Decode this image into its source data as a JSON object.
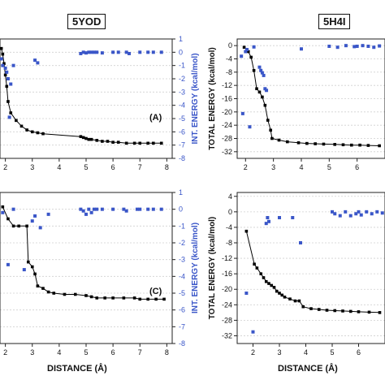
{
  "titles": {
    "left": "5YOD",
    "right": "5H4I"
  },
  "colors": {
    "line": "#000000",
    "scatter": "#3a56c8",
    "right_axis": "#3a56c8",
    "grid": "#d0d0d0"
  },
  "chart_data": [
    {
      "panel": "5YOD top",
      "type": "line",
      "annotation": "(A)",
      "xlim": [
        1.8,
        8.2
      ],
      "xticks": [
        "2",
        "3",
        "4",
        "5",
        "6",
        "7",
        "8"
      ],
      "ylim_right": [
        -8,
        1
      ],
      "ylabel_right": "INT. ENERGY (kcal/mol)",
      "yticks_right": [
        "-8",
        "-7",
        "-6",
        "-5",
        "-4",
        "-3",
        "-2",
        "-1",
        "0",
        "1"
      ],
      "series": [
        {
          "axis": "left",
          "style": "line",
          "x": [
            1.85,
            1.9,
            1.95,
            2.0,
            2.05,
            2.1,
            2.2,
            2.4,
            2.6,
            2.8,
            3.0,
            3.2,
            3.4,
            4.8,
            4.9,
            5.0,
            5.1,
            5.2,
            5.4,
            5.6,
            5.8,
            6.0,
            6.2,
            6.5,
            6.8,
            7.0,
            7.3,
            7.5,
            7.8
          ],
          "y": [
            -0.2,
            -0.5,
            -1.0,
            -1.6,
            -2.2,
            -3.0,
            -3.6,
            -4.0,
            -4.3,
            -4.5,
            -4.6,
            -4.65,
            -4.7,
            -4.85,
            -4.9,
            -4.95,
            -5.0,
            -5.0,
            -5.05,
            -5.1,
            -5.1,
            -5.15,
            -5.15,
            -5.2,
            -5.2,
            -5.2,
            -5.2,
            -5.2,
            -5.2
          ]
        },
        {
          "axis": "right",
          "style": "scatter",
          "x": [
            1.85,
            1.9,
            2.0,
            2.05,
            2.1,
            2.2,
            2.3,
            2.15,
            3.1,
            3.2,
            4.8,
            4.9,
            5.0,
            5.1,
            5.2,
            5.3,
            5.4,
            5.6,
            6.0,
            6.2,
            6.5,
            6.6,
            7.0,
            7.3,
            7.5,
            7.8
          ],
          "y": [
            -0.5,
            -1.0,
            -1.2,
            -1.5,
            -2.0,
            -2.4,
            -1.0,
            -4.9,
            -0.6,
            -0.8,
            -0.1,
            0.0,
            -0.05,
            0.0,
            0.0,
            0.0,
            0.0,
            -0.05,
            0.0,
            0.0,
            0.0,
            -0.1,
            0.0,
            0.0,
            0.0,
            0.0
          ]
        }
      ]
    },
    {
      "panel": "5H4I top",
      "type": "line",
      "xlim": [
        1.7,
        7.0
      ],
      "xticks": [
        "2",
        "3",
        "4",
        "5",
        "6"
      ],
      "ylim": [
        -34,
        2
      ],
      "ylabel": "TOTAL ENERGY (kcal/mol)",
      "yticks": [
        "0",
        "-4",
        "-8",
        "-12",
        "-16",
        "-20",
        "-24",
        "-28",
        "-32"
      ],
      "series": [
        {
          "axis": "left",
          "style": "line",
          "x": [
            1.95,
            2.05,
            2.1,
            2.2,
            2.3,
            2.4,
            2.5,
            2.6,
            2.7,
            2.8,
            2.9,
            2.95,
            3.2,
            3.5,
            3.9,
            4.2,
            4.5,
            4.8,
            5.2,
            5.5,
            5.8,
            6.1,
            6.4,
            6.8
          ],
          "y": [
            -0.5,
            -1.2,
            -1.8,
            -3.5,
            -7.5,
            -13.0,
            -14.0,
            -15.5,
            -18.0,
            -22.5,
            -25.5,
            -28.0,
            -28.5,
            -29.0,
            -29.3,
            -29.5,
            -29.6,
            -29.7,
            -29.8,
            -29.9,
            -30.0,
            -30.0,
            -30.1,
            -30.2
          ]
        },
        {
          "axis": "left",
          "style": "scatter",
          "x": [
            1.85,
            1.9,
            2.0,
            2.05,
            2.15,
            2.3,
            2.5,
            2.55,
            2.6,
            2.65,
            2.7,
            2.75,
            4.0,
            5.0,
            5.3,
            5.6,
            5.9,
            6.0,
            6.2,
            6.4,
            6.6,
            6.8
          ],
          "y": [
            -3.2,
            -20.5,
            -1.8,
            -1.2,
            -24.5,
            -0.4,
            -6.5,
            -7.5,
            -8.2,
            -9.0,
            -13.0,
            -13.5,
            -1.0,
            -0.2,
            -0.5,
            0.0,
            -0.3,
            -0.2,
            0.0,
            -0.2,
            -0.5,
            -0.1
          ]
        }
      ]
    },
    {
      "panel": "5YOD bottom",
      "type": "line",
      "annotation": "(C)",
      "xlim": [
        1.8,
        8.2
      ],
      "xticks": [
        "2",
        "3",
        "4",
        "5",
        "6",
        "7",
        "8"
      ],
      "xlabel": "DISTANCE (Å)",
      "ylim_right": [
        -8,
        1
      ],
      "ylabel_right": "INT. ENERGY (kcal/mol)",
      "yticks_right": [
        "-8",
        "-7",
        "-6",
        "-5",
        "-4",
        "-3",
        "-2",
        "-1",
        "0",
        "1"
      ],
      "series": [
        {
          "axis": "left",
          "style": "line",
          "x": [
            1.9,
            2.1,
            2.3,
            2.5,
            2.8,
            2.85,
            3.0,
            3.1,
            3.2,
            3.4,
            3.6,
            3.8,
            4.2,
            4.6,
            5.0,
            5.2,
            5.4,
            5.7,
            6.0,
            6.4,
            6.8,
            7.0,
            7.3,
            7.6,
            7.9
          ],
          "y": [
            -0.3,
            -0.8,
            -1.1,
            -1.1,
            -1.1,
            -2.6,
            -2.8,
            -3.1,
            -3.6,
            -3.7,
            -3.85,
            -3.9,
            -3.95,
            -3.95,
            -4.0,
            -4.05,
            -4.1,
            -4.1,
            -4.1,
            -4.1,
            -4.1,
            -4.15,
            -4.15,
            -4.15,
            -4.15
          ]
        },
        {
          "axis": "right",
          "style": "scatter",
          "x": [
            1.9,
            2.1,
            2.3,
            2.7,
            3.0,
            3.1,
            3.3,
            3.6,
            4.8,
            4.9,
            5.0,
            5.1,
            5.2,
            5.3,
            5.4,
            5.6,
            6.0,
            6.4,
            6.5,
            6.9,
            7.0,
            7.3,
            7.5,
            7.8
          ],
          "y": [
            -0.2,
            -3.3,
            0.0,
            -3.6,
            -0.7,
            -0.4,
            -1.1,
            -0.3,
            0.0,
            -0.1,
            -0.3,
            0.0,
            -0.2,
            0.0,
            0.0,
            0.0,
            0.0,
            0.0,
            -0.1,
            0.0,
            0.0,
            0.0,
            0.0,
            0.0
          ]
        }
      ]
    },
    {
      "panel": "5H4I bottom",
      "type": "line",
      "xlim": [
        1.4,
        7.0
      ],
      "xticks": [
        "2",
        "3",
        "4",
        "5",
        "6"
      ],
      "xlabel": "DISTANCE (Å)",
      "ylim": [
        -34,
        5
      ],
      "ylabel": "TOTAL ENERGY (kcal/mol)",
      "yticks": [
        "4",
        "0",
        "-4",
        "-8",
        "-12",
        "-16",
        "-20",
        "-24",
        "-28",
        "-32"
      ],
      "series": [
        {
          "axis": "left",
          "style": "line",
          "x": [
            1.75,
            2.05,
            2.15,
            2.3,
            2.4,
            2.5,
            2.6,
            2.7,
            2.8,
            2.9,
            3.0,
            3.1,
            3.2,
            3.4,
            3.6,
            3.75,
            3.9,
            4.2,
            4.5,
            4.8,
            5.1,
            5.4,
            5.7,
            6.0,
            6.4,
            6.8
          ],
          "y": [
            -5.0,
            -13.5,
            -14.5,
            -16.0,
            -17.0,
            -18.0,
            -18.5,
            -19.0,
            -19.5,
            -20.5,
            -21.0,
            -21.5,
            -22.0,
            -22.5,
            -23.0,
            -23.0,
            -24.5,
            -25.0,
            -25.2,
            -25.4,
            -25.5,
            -25.6,
            -25.7,
            -25.8,
            -25.9,
            -26.0
          ]
        },
        {
          "axis": "left",
          "style": "scatter",
          "x": [
            1.75,
            2.0,
            2.5,
            2.55,
            2.6,
            3.0,
            3.5,
            3.8,
            5.0,
            5.1,
            5.3,
            5.5,
            5.7,
            5.9,
            6.0,
            6.1,
            6.3,
            6.5,
            6.7,
            6.9
          ],
          "y": [
            -21.0,
            -31.0,
            -3.0,
            -1.5,
            -2.5,
            -1.5,
            -1.5,
            -8.0,
            0.0,
            -0.5,
            -1.0,
            0.0,
            -1.0,
            -0.5,
            0.0,
            -0.8,
            0.0,
            -0.5,
            0.0,
            -0.3
          ]
        }
      ]
    }
  ]
}
